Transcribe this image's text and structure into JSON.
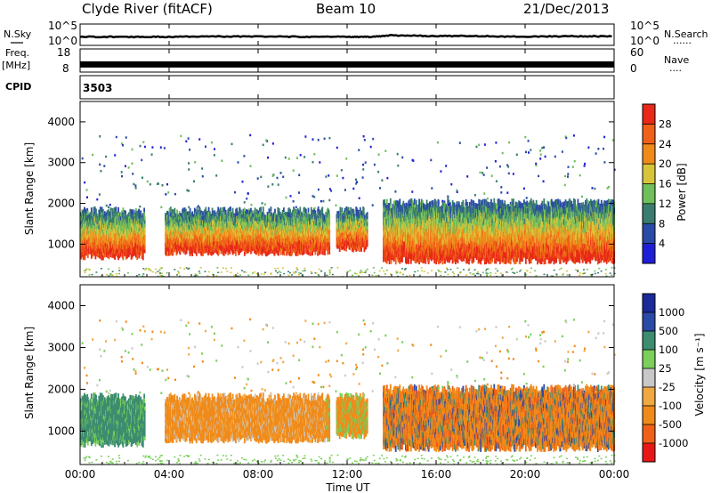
{
  "header": {
    "station": "Clyde River (fitACF)",
    "beam": "Beam 10",
    "date": "21/Dec/2013"
  },
  "left_labels": {
    "nsky": "N.Sky",
    "freq_line1": "Freq.",
    "freq_line2": "[MHz]",
    "cpid_label": "CPID"
  },
  "right_labels": {
    "nsearch": "N.Search",
    "nave": "Nave",
    "dots": "......",
    "dots_short": "...."
  },
  "cpid_value": "3503",
  "colors": {
    "power": [
      "#1f1fd8",
      "#2a4aa8",
      "#3a7d6e",
      "#6fbf5a",
      "#d8c43a",
      "#f08a1a",
      "#f06018",
      "#e82818"
    ],
    "velocity": [
      "#e81818",
      "#f06018",
      "#f08a1a",
      "#f0a840",
      "#c8c8c8",
      "#7ad05a",
      "#3c8c70",
      "#2a4aa8",
      "#1a2a9a"
    ]
  },
  "chart_data": [
    {
      "type": "line",
      "panel": "noise",
      "left_axis_label": "N.Sky",
      "right_axis_label": "N.Search",
      "y_ticks_left": [
        "10^5",
        "10^0"
      ],
      "y_ticks_right": [
        "10^5",
        "10^0"
      ],
      "x_range_hours": [
        0,
        24
      ],
      "series": [
        {
          "name": "N.Sky",
          "x": [
            0,
            2,
            4,
            6,
            8,
            10,
            12,
            13,
            14,
            16,
            18,
            20,
            22,
            24
          ],
          "y": [
            2.2,
            2.2,
            2.2,
            2.3,
            2.3,
            2.2,
            2.2,
            2.2,
            2.6,
            2.4,
            2.4,
            2.2,
            2.4,
            2.3
          ]
        }
      ]
    },
    {
      "type": "line",
      "panel": "frequency",
      "left_axis_label": "Freq. [MHz]",
      "right_axis_label": "Nave",
      "y_ticks_left": [
        "18",
        "8"
      ],
      "y_ticks_right": [
        "60",
        "0"
      ],
      "x_range_hours": [
        0,
        24
      ],
      "series": [
        {
          "name": "Freq.",
          "x": [
            0,
            24
          ],
          "y": [
            11.5,
            11.5
          ]
        }
      ]
    },
    {
      "type": "heatmap",
      "panel": "power",
      "ylabel": "Slant Range [km]",
      "y_ticks": [
        1000,
        2000,
        3000,
        4000
      ],
      "ylim": [
        200,
        4500
      ],
      "x_range_hours": [
        0,
        24
      ],
      "colorbar_label": "Power [dB]",
      "colorbar_ticks": [
        4,
        8,
        12,
        16,
        20,
        24,
        28
      ],
      "scatter_bands": [
        {
          "t": [
            0.0,
            2.9
          ],
          "range": [
            700,
            1800
          ]
        },
        {
          "t": [
            3.8,
            11.2
          ],
          "range": [
            800,
            1800
          ]
        },
        {
          "t": [
            11.5,
            12.9
          ],
          "range": [
            900,
            1800
          ]
        },
        {
          "t": [
            13.6,
            24.0
          ],
          "range": [
            600,
            2000
          ]
        }
      ]
    },
    {
      "type": "heatmap",
      "panel": "velocity",
      "xlabel": "Time UT",
      "ylabel": "Slant Range [km]",
      "y_ticks": [
        1000,
        2000,
        3000,
        4000
      ],
      "ylim": [
        200,
        4500
      ],
      "x_ticks": [
        "00:00",
        "04:00",
        "08:00",
        "12:00",
        "16:00",
        "20:00",
        "00:00"
      ],
      "x_range_hours": [
        0,
        24
      ],
      "colorbar_label": "Velocity [m s⁻¹]",
      "colorbar_ticks": [
        "-1000",
        "-500",
        "-100",
        "-25",
        "25",
        "100",
        "500",
        "1000"
      ]
    }
  ]
}
